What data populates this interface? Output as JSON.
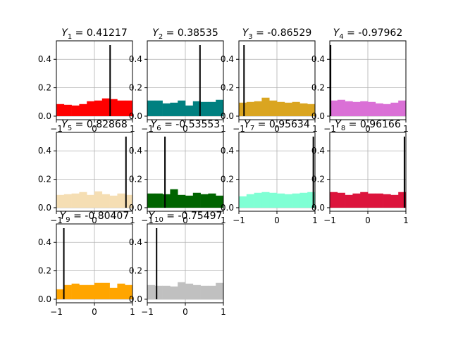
{
  "chart_data": [
    {
      "type": "bar",
      "title_base": "Y",
      "title_sub": "1",
      "title_value": "0.41217",
      "marker_x": 0.41217,
      "color": "#ff0000",
      "values": [
        0.085,
        0.08,
        0.075,
        0.085,
        0.105,
        0.11,
        0.125,
        0.12,
        0.11,
        0.11
      ],
      "xlim": [
        -1,
        1
      ],
      "ylim": [
        -0.025,
        0.53
      ],
      "xticks": [
        "−1",
        "0",
        "1"
      ],
      "yticks": [
        "0.0",
        "0.2",
        "0.4"
      ],
      "grid": true
    },
    {
      "type": "bar",
      "title_base": "Y",
      "title_sub": "2",
      "title_value": "0.38535",
      "marker_x": 0.38535,
      "color": "#008080",
      "values": [
        0.11,
        0.11,
        0.09,
        0.095,
        0.11,
        0.075,
        0.105,
        0.1,
        0.1,
        0.115
      ],
      "xlim": [
        -1,
        1
      ],
      "ylim": [
        -0.025,
        0.53
      ],
      "xticks": [
        "−1",
        "0",
        "1"
      ],
      "yticks": [
        "0.0",
        "0.2",
        "0.4"
      ],
      "grid": true
    },
    {
      "type": "bar",
      "title_base": "Y",
      "title_sub": "3",
      "title_value": "-0.86529",
      "marker_x": -0.86529,
      "color": "#daa520",
      "values": [
        0.095,
        0.1,
        0.105,
        0.13,
        0.11,
        0.1,
        0.095,
        0.1,
        0.09,
        0.085
      ],
      "xlim": [
        -1,
        1
      ],
      "ylim": [
        -0.025,
        0.53
      ],
      "xticks": [
        "−1",
        "0",
        "1"
      ],
      "yticks": [
        "0.0",
        "0.2",
        "0.4"
      ],
      "grid": true
    },
    {
      "type": "bar",
      "title_base": "Y",
      "title_sub": "4",
      "title_value": "-0.97962",
      "marker_x": -0.97962,
      "color": "#da70d6",
      "values": [
        0.11,
        0.115,
        0.105,
        0.1,
        0.105,
        0.1,
        0.09,
        0.085,
        0.095,
        0.11
      ],
      "xlim": [
        -1,
        1
      ],
      "ylim": [
        -0.025,
        0.53
      ],
      "xticks": [
        "−1",
        "0",
        "1"
      ],
      "yticks": [
        "0.0",
        "0.2",
        "0.4"
      ],
      "grid": true
    },
    {
      "type": "bar",
      "title_base": "Y",
      "title_sub": "5",
      "title_value": "0.82868",
      "marker_x": 0.82868,
      "color": "#f5deb3",
      "values": [
        0.09,
        0.095,
        0.1,
        0.11,
        0.09,
        0.115,
        0.095,
        0.085,
        0.1,
        0.09
      ],
      "xlim": [
        -1,
        1
      ],
      "ylim": [
        -0.025,
        0.53
      ],
      "xticks": [
        "−1",
        "0",
        "1"
      ],
      "yticks": [
        "0.0",
        "0.2",
        "0.4"
      ],
      "grid": true
    },
    {
      "type": "bar",
      "title_base": "Y",
      "title_sub": "6",
      "title_value": "-0.53553",
      "marker_x": -0.53553,
      "color": "#006400",
      "values": [
        0.1,
        0.1,
        0.095,
        0.13,
        0.09,
        0.085,
        0.105,
        0.095,
        0.1,
        0.085
      ],
      "xlim": [
        -1,
        1
      ],
      "ylim": [
        -0.025,
        0.53
      ],
      "xticks": [
        "−1",
        "0",
        "1"
      ],
      "yticks": [
        "0.0",
        "0.2",
        "0.4"
      ],
      "grid": true
    },
    {
      "type": "bar",
      "title_base": "Y",
      "title_sub": "7",
      "title_value": "0.95634",
      "marker_x": 0.95634,
      "color": "#7fffd4",
      "values": [
        0.08,
        0.095,
        0.105,
        0.11,
        0.105,
        0.1,
        0.095,
        0.1,
        0.105,
        0.11
      ],
      "xlim": [
        -1,
        1
      ],
      "ylim": [
        -0.025,
        0.53
      ],
      "xticks": [
        "−1",
        "0",
        "1"
      ],
      "yticks": [
        "0.0",
        "0.2",
        "0.4"
      ],
      "grid": true
    },
    {
      "type": "bar",
      "title_base": "Y",
      "title_sub": "8",
      "title_value": "0.96166",
      "marker_x": 0.96166,
      "color": "#dc143c",
      "values": [
        0.11,
        0.105,
        0.09,
        0.1,
        0.11,
        0.1,
        0.1,
        0.095,
        0.09,
        0.11
      ],
      "xlim": [
        -1,
        1
      ],
      "ylim": [
        -0.025,
        0.53
      ],
      "xticks": [
        "−1",
        "0",
        "1"
      ],
      "yticks": [
        "0.0",
        "0.2",
        "0.4"
      ],
      "grid": true
    },
    {
      "type": "bar",
      "title_base": "Y",
      "title_sub": "9",
      "title_value": "-0.80407",
      "marker_x": -0.80407,
      "color": "#ffa500",
      "values": [
        0.07,
        0.1,
        0.11,
        0.1,
        0.1,
        0.115,
        0.115,
        0.08,
        0.11,
        0.1
      ],
      "xlim": [
        -1,
        1
      ],
      "ylim": [
        -0.025,
        0.53
      ],
      "xticks": [
        "−1",
        "0",
        "1"
      ],
      "yticks": [
        "0.0",
        "0.2",
        "0.4"
      ],
      "grid": true
    },
    {
      "type": "bar",
      "title_base": "Y",
      "title_sub": "10",
      "title_value": "-0.75497",
      "marker_x": -0.75497,
      "color": "#c0c0c0",
      "values": [
        0.1,
        0.095,
        0.095,
        0.09,
        0.12,
        0.11,
        0.1,
        0.095,
        0.095,
        0.115
      ],
      "xlim": [
        -1,
        1
      ],
      "ylim": [
        -0.025,
        0.53
      ],
      "xticks": [
        "−1",
        "0",
        "1"
      ],
      "yticks": [
        "0.0",
        "0.2",
        "0.4"
      ],
      "grid": true
    }
  ]
}
